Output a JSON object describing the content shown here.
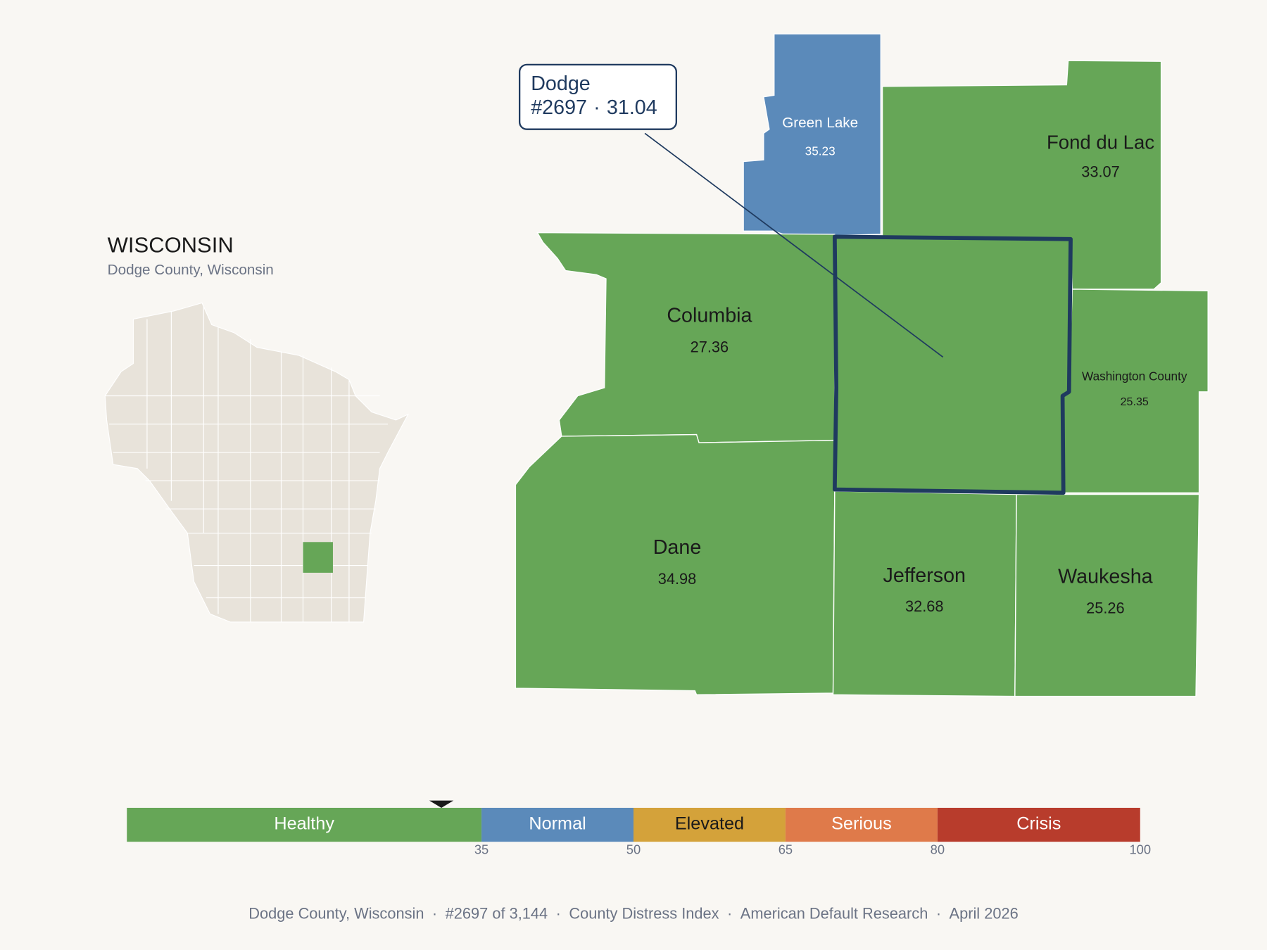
{
  "header": {
    "title": "WISCONSIN",
    "subtitle": "Dodge County, Wisconsin"
  },
  "callout": {
    "name": "Dodge",
    "rank": "#2697",
    "separator": "·",
    "score": 31.04
  },
  "counties": [
    {
      "name": "Green Lake",
      "score": 35.23
    },
    {
      "name": "Fond du Lac",
      "score": 33.07
    },
    {
      "name": "Columbia",
      "score": 27.36
    },
    {
      "name": "Washington County",
      "score": 25.35
    },
    {
      "name": "Dane",
      "score": 34.98
    },
    {
      "name": "Jefferson",
      "score": 32.68
    },
    {
      "name": "Waukesha",
      "score": 25.26
    }
  ],
  "scale": {
    "range": [
      0,
      100
    ],
    "segments": [
      {
        "label": "Healthy",
        "color": "#66a657"
      },
      {
        "label": "Normal",
        "color": "#5b8aba"
      },
      {
        "label": "Elevated",
        "color": "#d4a23a"
      },
      {
        "label": "Serious",
        "color": "#df7a4a"
      },
      {
        "label": "Crisis",
        "color": "#b83c2c"
      }
    ],
    "ticks": [
      35,
      50,
      65,
      80,
      100
    ]
  },
  "footer": {
    "separator": "·",
    "items": [
      "Dodge County, Wisconsin",
      "#2697 of 3,144",
      "County Distress Index",
      "American Default Research",
      "April 2026"
    ]
  }
}
